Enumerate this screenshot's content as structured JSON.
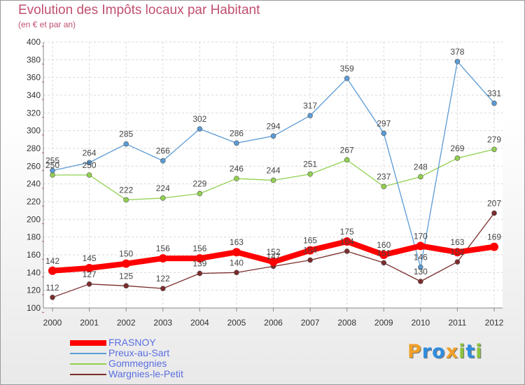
{
  "chart_data": {
    "type": "line",
    "title": "Evolution des Impôts locaux par Habitant",
    "subtitle": "(en € et par an)",
    "categories": [
      "2000",
      "2001",
      "2002",
      "2003",
      "2004",
      "2005",
      "2006",
      "2007",
      "2008",
      "2009",
      "2010",
      "2011",
      "2012"
    ],
    "ylim": [
      100,
      400
    ],
    "yticks": [
      "100",
      "120",
      "140",
      "160",
      "180",
      "200",
      "220",
      "240",
      "260",
      "280",
      "300",
      "320",
      "340",
      "360",
      "380",
      "400"
    ],
    "grid": true,
    "series": [
      {
        "name": "FRASNOY",
        "color": "#ff0000",
        "values": [
          142,
          145,
          150,
          156,
          156,
          163,
          152,
          165,
          175,
          160,
          170,
          163,
          169
        ],
        "labels": [
          "142",
          "145",
          "150",
          "156",
          "156",
          "163",
          "152",
          "165",
          "175",
          "160",
          "170",
          "163",
          "169"
        ]
      },
      {
        "name": "Preux-au-Sart",
        "color": "#5b9bd5",
        "values": [
          255,
          264,
          285,
          266,
          302,
          286,
          294,
          317,
          359,
          297,
          146,
          378,
          331
        ],
        "labels": [
          "255",
          "264",
          "285",
          "266",
          "302",
          "286",
          "294",
          "317",
          "359",
          "297",
          "146",
          "378",
          "331"
        ]
      },
      {
        "name": "Gommegnies",
        "color": "#92d050",
        "values": [
          250,
          250,
          222,
          224,
          229,
          246,
          244,
          251,
          267,
          237,
          248,
          269,
          279
        ],
        "labels": [
          "250",
          "250",
          "222",
          "224",
          "229",
          "246",
          "244",
          "251",
          "267",
          "237",
          "248",
          "269",
          "279"
        ]
      },
      {
        "name": "Wargnies-le-Petit",
        "color": "#7b2c2c",
        "values": [
          112,
          127,
          125,
          122,
          139,
          140,
          147,
          154,
          164,
          151,
          130,
          152,
          207
        ],
        "labels": [
          "112",
          "127",
          "125",
          "122",
          "139",
          "140",
          "147",
          "154",
          "164",
          "151",
          "130",
          "152",
          "207"
        ]
      }
    ]
  },
  "logo": {
    "letters": [
      "P",
      "r",
      "o",
      "x",
      "i",
      "t",
      "i"
    ],
    "colors": [
      "#f0a028",
      "#2f8de0",
      "#2f8de0",
      "#f0a028",
      "#8cc43c",
      "#2f8de0",
      "#8cc43c"
    ]
  }
}
